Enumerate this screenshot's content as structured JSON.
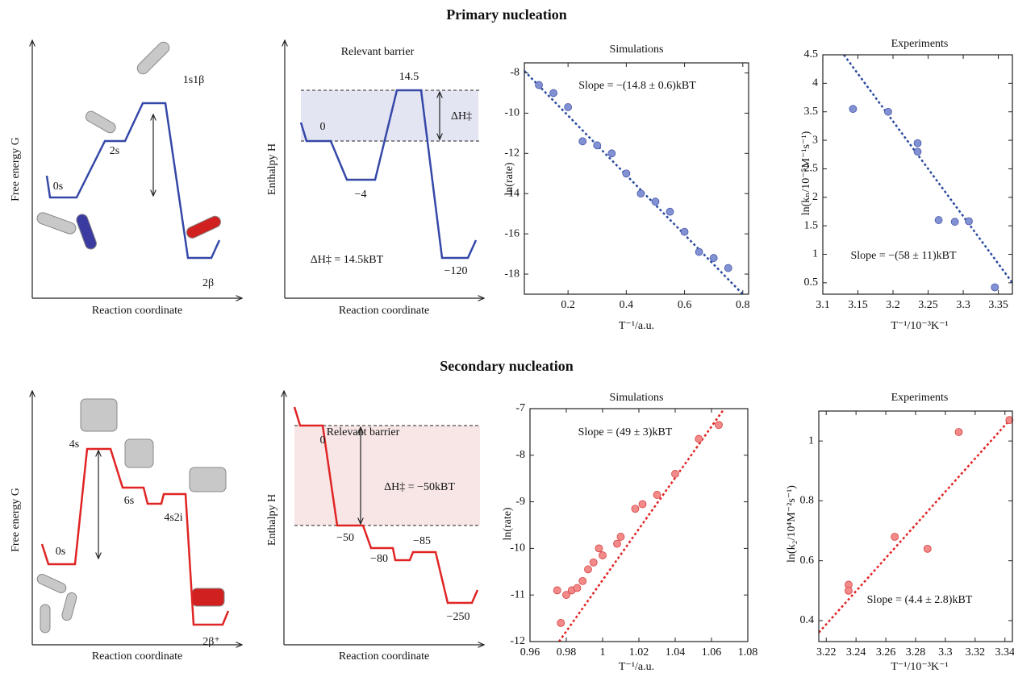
{
  "sections": [
    "Primary nucleation",
    "Secondary nucleation"
  ],
  "chart_data": [
    {
      "type": "energy-profile",
      "color": "#3548a8",
      "y_label": "Free energy G",
      "x_label": "Reaction coordinate",
      "labels": [
        "0s",
        "2s",
        "1s1β",
        "2β"
      ]
    },
    {
      "type": "energy-profile",
      "color": "#3548a8",
      "shade": "#e3e5f3",
      "title": "Relevant barrier",
      "y_label": "Enthalpy H",
      "x_label": "Reaction coordinate",
      "labels": [
        "0",
        "−4",
        "14.5",
        "−120"
      ],
      "annotations": [
        "ΔH‡",
        "ΔH‡ = 14.5kBT"
      ]
    },
    {
      "type": "scatter",
      "title": "Simulations",
      "x_label": "T⁻¹/a.u.",
      "y_label": "ln(rate)",
      "color": "#8290d4",
      "edge": "#4a5aa8",
      "line_color": "#2b4aa0",
      "x": [
        0.1,
        0.15,
        0.2,
        0.25,
        0.3,
        0.35,
        0.4,
        0.45,
        0.5,
        0.55,
        0.6,
        0.65,
        0.7,
        0.75
      ],
      "values": [
        -8.6,
        -9.0,
        -9.7,
        -11.4,
        -11.6,
        -12.0,
        -13.0,
        -14.0,
        -14.4,
        -14.9,
        -15.9,
        -16.9,
        -17.2,
        -17.7
      ],
      "fit": {
        "x": [
          0.05,
          0.8
        ],
        "values": [
          -7.9,
          -19.0
        ]
      },
      "annotation": "Slope = −(14.8 ± 0.6)kBT",
      "xlim": [
        0.05,
        0.82
      ],
      "ylim": [
        -19,
        -7.5
      ],
      "xticks": [
        0.2,
        0.4,
        0.6,
        0.8
      ],
      "yticks": [
        -8,
        -10,
        -12,
        -14,
        -16,
        -18
      ]
    },
    {
      "type": "scatter",
      "title": "Experiments",
      "x_label": "T⁻¹/10⁻³K⁻¹",
      "y_label": "ln(kₙ/10⁻⁵M⁻¹s⁻¹)",
      "color": "#8290d4",
      "edge": "#4a5aa8",
      "line_color": "#2b4aa0",
      "x": [
        3.143,
        3.193,
        3.235,
        3.235,
        3.265,
        3.288,
        3.308,
        3.345
      ],
      "values": [
        3.55,
        3.5,
        2.95,
        2.8,
        1.6,
        1.57,
        1.58,
        0.42
      ],
      "fit": {
        "x": [
          3.13,
          3.37
        ],
        "values": [
          4.5,
          0.5
        ]
      },
      "annotation": "Slope = −(58 ± 11)kBT",
      "xlim": [
        3.1,
        3.37
      ],
      "ylim": [
        0.3,
        4.5
      ],
      "xticks": [
        3.1,
        3.15,
        3.2,
        3.25,
        3.3,
        3.35
      ],
      "yticks": [
        0.5,
        1,
        1.5,
        2,
        2.5,
        3,
        3.5,
        4,
        4.5
      ]
    },
    {
      "type": "energy-profile",
      "color": "#e02424",
      "y_label": "Free energy G",
      "x_label": "Reaction coordinate",
      "labels": [
        "0s",
        "4s",
        "6s",
        "4s2i",
        "2β⁺"
      ]
    },
    {
      "type": "energy-profile",
      "color": "#e02424",
      "shade": "#f8e6e6",
      "title": "Relevant barrier",
      "y_label": "Enthalpy H",
      "x_label": "Reaction coordinate",
      "labels": [
        "0",
        "−50",
        "−80",
        "−85",
        "−250"
      ],
      "annotations": [
        "ΔH‡ = −50kBT"
      ]
    },
    {
      "type": "scatter",
      "title": "Simulations",
      "x_label": "T⁻¹/a.u.",
      "y_label": "ln(rate)",
      "color": "#f28a8a",
      "edge": "#d84040",
      "line_color": "#e02424",
      "x": [
        0.975,
        0.977,
        0.98,
        0.983,
        0.986,
        0.989,
        0.992,
        0.995,
        0.998,
        1.0,
        1.008,
        1.01,
        1.018,
        1.022,
        1.03,
        1.04,
        1.053,
        1.064
      ],
      "values": [
        -10.9,
        -11.6,
        -11.0,
        -10.9,
        -10.85,
        -10.7,
        -10.45,
        -10.3,
        -10.0,
        -10.15,
        -9.9,
        -9.75,
        -9.15,
        -9.05,
        -8.85,
        -8.4,
        -7.65,
        -7.35
      ],
      "fit": {
        "x": [
          0.976,
          1.067
        ],
        "values": [
          -12.0,
          -7.0
        ]
      },
      "annotation": "Slope = (49 ± 3)kBT",
      "xlim": [
        0.96,
        1.08
      ],
      "ylim": [
        -12,
        -7
      ],
      "xticks": [
        0.96,
        0.98,
        1,
        1.02,
        1.04,
        1.06,
        1.08
      ],
      "yticks": [
        -12,
        -11,
        -10,
        -9,
        -8,
        -7
      ]
    },
    {
      "type": "scatter",
      "title": "Experiments",
      "x_label": "T⁻¹/10⁻³K⁻¹",
      "y_label": "ln(k₂/10⁴M⁻²s⁻¹)",
      "color": "#f28a8a",
      "edge": "#d84040",
      "line_color": "#e02424",
      "x": [
        3.235,
        3.235,
        3.266,
        3.288,
        3.309,
        3.343
      ],
      "values": [
        0.52,
        0.5,
        0.68,
        0.64,
        1.03,
        1.07
      ],
      "fit": {
        "x": [
          3.215,
          3.345
        ],
        "values": [
          0.36,
          1.08
        ]
      },
      "annotation": "Slope = (4.4 ± 2.8)kBT",
      "xlim": [
        3.215,
        3.345
      ],
      "ylim": [
        0.33,
        1.1
      ],
      "xticks": [
        3.22,
        3.24,
        3.26,
        3.28,
        3.3,
        3.32,
        3.34
      ],
      "yticks": [
        0.4,
        0.6,
        0.8,
        1
      ]
    }
  ]
}
